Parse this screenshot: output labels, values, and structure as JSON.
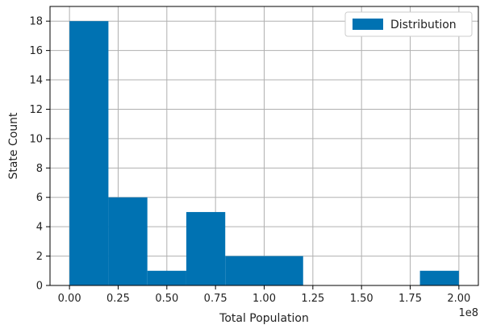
{
  "chart_data": {
    "type": "bar",
    "bins": [
      {
        "x0": 0.0,
        "x1": 0.2,
        "count": 18
      },
      {
        "x0": 0.2,
        "x1": 0.4,
        "count": 6
      },
      {
        "x0": 0.4,
        "x1": 0.6,
        "count": 1
      },
      {
        "x0": 0.6,
        "x1": 0.8,
        "count": 5
      },
      {
        "x0": 0.8,
        "x1": 1.0,
        "count": 2
      },
      {
        "x0": 1.0,
        "x1": 1.2,
        "count": 2
      },
      {
        "x0": 1.2,
        "x1": 1.4,
        "count": 0
      },
      {
        "x0": 1.4,
        "x1": 1.6,
        "count": 0
      },
      {
        "x0": 1.6,
        "x1": 1.8,
        "count": 0
      },
      {
        "x0": 1.8,
        "x1": 2.0,
        "count": 1
      }
    ],
    "xlabel": "Total Population",
    "ylabel": "State Count",
    "x_offset_label": "1e8",
    "xlim": [
      -0.1,
      2.1
    ],
    "ylim": [
      0,
      19
    ],
    "xticks": [
      0.0,
      0.25,
      0.5,
      0.75,
      1.0,
      1.25,
      1.5,
      1.75,
      2.0
    ],
    "xtick_labels": [
      "0.00",
      "0.25",
      "0.50",
      "0.75",
      "1.00",
      "1.25",
      "1.50",
      "1.75",
      "2.00"
    ],
    "yticks": [
      0,
      2,
      4,
      6,
      8,
      10,
      12,
      14,
      16,
      18
    ],
    "ytick_labels": [
      "0",
      "2",
      "4",
      "6",
      "8",
      "10",
      "12",
      "14",
      "16",
      "18"
    ],
    "grid": true,
    "legend": {
      "placement": "top-right",
      "entries": [
        {
          "name": "Distribution",
          "color": "#0072B2"
        }
      ]
    },
    "bar_color": "#0072B2"
  }
}
